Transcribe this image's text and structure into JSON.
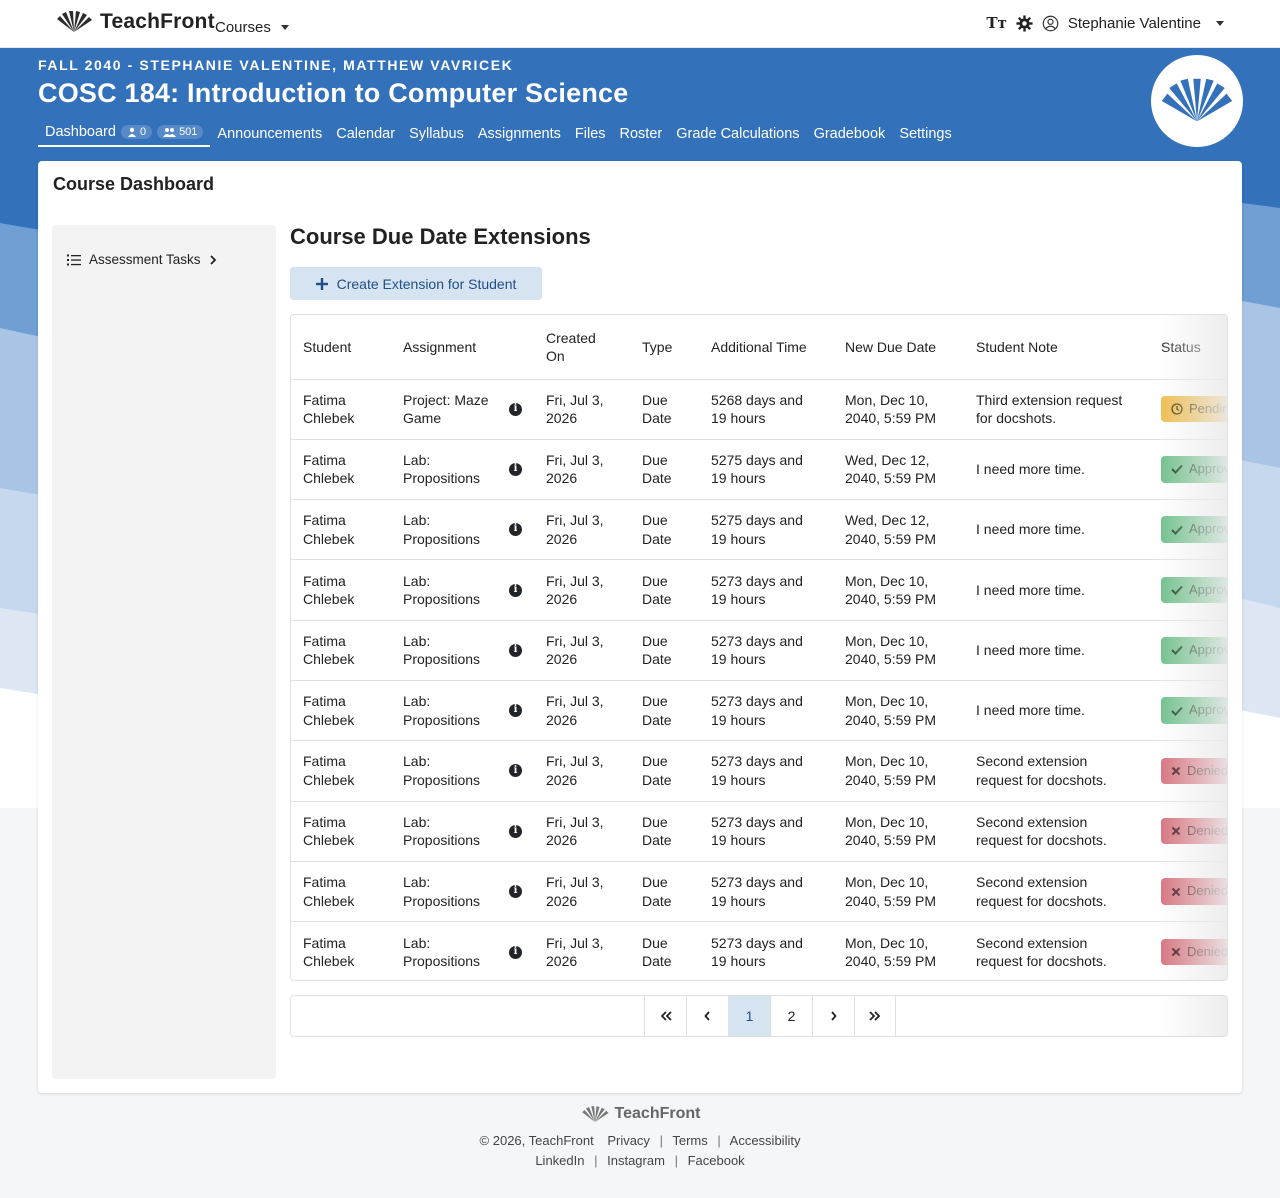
{
  "topbar": {
    "brand": "TeachFront",
    "courses_label": "Courses",
    "user_name": "Stephanie Valentine",
    "text_size_label": "TT"
  },
  "course": {
    "term": "FALL 2040 - STEPHANIE VALENTINE, MATTHEW VAVRICEK",
    "title": "COSC 184: Introduction to Computer Science",
    "nav": {
      "dashboard": "Dashboard",
      "dashboard_count_1": "0",
      "dashboard_count_2": "501",
      "items": [
        "Announcements",
        "Calendar",
        "Syllabus",
        "Assignments",
        "Files",
        "Roster",
        "Grade Calculations",
        "Gradebook",
        "Settings"
      ]
    }
  },
  "card": {
    "title": "Course Dashboard",
    "sidebar_item": "Assessment Tasks",
    "section_title": "Course Due Date Extensions",
    "create_button": "Create Extension for Student"
  },
  "table": {
    "headers": [
      "Student",
      "Assignment",
      "Created On",
      "Type",
      "Additional Time",
      "New Due Date",
      "Student Note",
      "Status"
    ],
    "rows": [
      {
        "student": "Fatima Chlebek",
        "assignment": "Project: Maze Game",
        "created": "Fri, Jul 3, 2026",
        "type": "Due Date",
        "additional": "5268 days and 19 hours",
        "due": "Mon, Dec 10, 2040, 5:59 PM",
        "note": "Third extension request for docshots.",
        "status": "Pending",
        "status_type": "pending"
      },
      {
        "student": "Fatima Chlebek",
        "assignment": "Lab: Propositions",
        "created": "Fri, Jul 3, 2026",
        "type": "Due Date",
        "additional": "5275 days and 19 hours",
        "due": "Wed, Dec 12, 2040, 5:59 PM",
        "note": "I need more time.",
        "status": "Approved",
        "status_type": "approved"
      },
      {
        "student": "Fatima Chlebek",
        "assignment": "Lab: Propositions",
        "created": "Fri, Jul 3, 2026",
        "type": "Due Date",
        "additional": "5275 days and 19 hours",
        "due": "Wed, Dec 12, 2040, 5:59 PM",
        "note": "I need more time.",
        "status": "Approved",
        "status_type": "approved"
      },
      {
        "student": "Fatima Chlebek",
        "assignment": "Lab: Propositions",
        "created": "Fri, Jul 3, 2026",
        "type": "Due Date",
        "additional": "5273 days and 19 hours",
        "due": "Mon, Dec 10, 2040, 5:59 PM",
        "note": "I need more time.",
        "status": "Approved",
        "status_type": "approved"
      },
      {
        "student": "Fatima Chlebek",
        "assignment": "Lab: Propositions",
        "created": "Fri, Jul 3, 2026",
        "type": "Due Date",
        "additional": "5273 days and 19 hours",
        "due": "Mon, Dec 10, 2040, 5:59 PM",
        "note": "I need more time.",
        "status": "Approved",
        "status_type": "approved"
      },
      {
        "student": "Fatima Chlebek",
        "assignment": "Lab: Propositions",
        "created": "Fri, Jul 3, 2026",
        "type": "Due Date",
        "additional": "5273 days and 19 hours",
        "due": "Mon, Dec 10, 2040, 5:59 PM",
        "note": "I need more time.",
        "status": "Approved",
        "status_type": "approved"
      },
      {
        "student": "Fatima Chlebek",
        "assignment": "Lab: Propositions",
        "created": "Fri, Jul 3, 2026",
        "type": "Due Date",
        "additional": "5273 days and 19 hours",
        "due": "Mon, Dec 10, 2040, 5:59 PM",
        "note": "Second extension request for docshots.",
        "status": "Denied",
        "status_type": "denied"
      },
      {
        "student": "Fatima Chlebek",
        "assignment": "Lab: Propositions",
        "created": "Fri, Jul 3, 2026",
        "type": "Due Date",
        "additional": "5273 days and 19 hours",
        "due": "Mon, Dec 10, 2040, 5:59 PM",
        "note": "Second extension request for docshots.",
        "status": "Denied",
        "status_type": "denied"
      },
      {
        "student": "Fatima Chlebek",
        "assignment": "Lab: Propositions",
        "created": "Fri, Jul 3, 2026",
        "type": "Due Date",
        "additional": "5273 days and 19 hours",
        "due": "Mon, Dec 10, 2040, 5:59 PM",
        "note": "Second extension request for docshots.",
        "status": "Denied",
        "status_type": "denied"
      },
      {
        "student": "Fatima Chlebek",
        "assignment": "Lab: Propositions",
        "created": "Fri, Jul 3, 2026",
        "type": "Due Date",
        "additional": "5273 days and 19 hours",
        "due": "Mon, Dec 10, 2040, 5:59 PM",
        "note": "Second extension request for docshots.",
        "status": "Denied",
        "status_type": "denied"
      }
    ]
  },
  "pagination": {
    "first": "«",
    "prev": "‹",
    "pages": [
      "1",
      "2"
    ],
    "current_page": "1",
    "next": "›",
    "last": "»"
  },
  "footer": {
    "brand": "TeachFront",
    "copyright": "© 2026, TeachFront",
    "links_1": [
      "Privacy",
      "Terms",
      "Accessibility"
    ],
    "links_2": [
      "LinkedIn",
      "Instagram",
      "Facebook"
    ]
  },
  "colors": {
    "banner_blue": "#3371bb",
    "pending": "#eebd4e",
    "approved": "#6fc08b",
    "denied": "#d7727d",
    "button_bg": "#d6e4f2"
  },
  "icons": {
    "brand": "teachfront-logo-icon",
    "theme": "gear-icon",
    "user": "user-circle-icon",
    "list": "list-icon",
    "info": "info-icon",
    "pending": "clock-icon",
    "approved": "check-icon",
    "denied": "x-icon"
  }
}
